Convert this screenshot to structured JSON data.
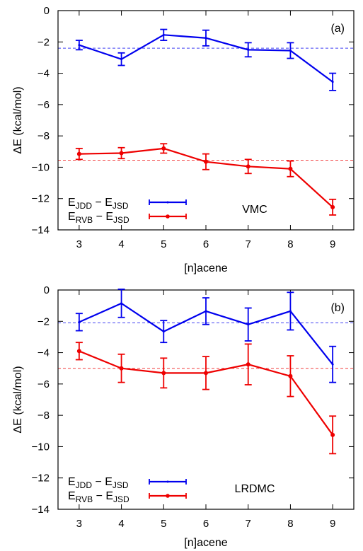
{
  "chart_data": [
    {
      "type": "line",
      "panel_label": "(a)",
      "method_label": "VMC",
      "xlabel": "[n]acene",
      "ylabel": "ΔE (kcal/mol)",
      "x": [
        3,
        4,
        5,
        6,
        7,
        8,
        9
      ],
      "xlim": [
        2.5,
        9.5
      ],
      "ylim": [
        -14,
        0
      ],
      "yticks": [
        0,
        -2,
        -4,
        -6,
        -8,
        -10,
        -12,
        -14
      ],
      "xticks": [
        3,
        4,
        5,
        6,
        7,
        8,
        9
      ],
      "grid": false,
      "legend_position": "bottom-left",
      "series": [
        {
          "legend_main": "E",
          "legend_sub1": "JDD",
          "legend_mid": " − E",
          "legend_sub2": "JSD",
          "color": "#0000ee",
          "values": [
            -2.2,
            -3.1,
            -1.55,
            -1.75,
            -2.5,
            -2.55,
            -4.55
          ],
          "errors": [
            0.3,
            0.4,
            0.35,
            0.5,
            0.45,
            0.5,
            0.55
          ],
          "reference": -2.4
        },
        {
          "legend_main": "E",
          "legend_sub1": "RVB",
          "legend_mid": " − E",
          "legend_sub2": "JSD",
          "color": "#ee0000",
          "values": [
            -9.15,
            -9.1,
            -8.8,
            -9.65,
            -9.95,
            -10.1,
            -12.55
          ],
          "errors": [
            0.35,
            0.35,
            0.3,
            0.5,
            0.45,
            0.5,
            0.5
          ],
          "reference": -9.55
        }
      ]
    },
    {
      "type": "line",
      "panel_label": "(b)",
      "method_label": "LRDMC",
      "xlabel": "[n]acene",
      "ylabel": "ΔE (kcal/mol)",
      "x": [
        3,
        4,
        5,
        6,
        7,
        8,
        9
      ],
      "xlim": [
        2.5,
        9.5
      ],
      "ylim": [
        -14,
        0
      ],
      "yticks": [
        0,
        -2,
        -4,
        -6,
        -8,
        -10,
        -12,
        -14
      ],
      "xticks": [
        3,
        4,
        5,
        6,
        7,
        8,
        9
      ],
      "grid": false,
      "legend_position": "bottom-left",
      "series": [
        {
          "legend_main": "E",
          "legend_sub1": "JDD",
          "legend_mid": " − E",
          "legend_sub2": "JSD",
          "color": "#0000ee",
          "values": [
            -2.05,
            -0.85,
            -2.65,
            -1.35,
            -2.2,
            -1.35,
            -4.75
          ],
          "errors": [
            0.55,
            0.9,
            0.7,
            0.85,
            1.05,
            1.2,
            1.15
          ],
          "reference": -2.1
        },
        {
          "legend_main": "E",
          "legend_sub1": "RVB",
          "legend_mid": " − E",
          "legend_sub2": "JSD",
          "color": "#ee0000",
          "values": [
            -3.9,
            -5.0,
            -5.3,
            -5.3,
            -4.75,
            -5.5,
            -9.25
          ],
          "errors": [
            0.55,
            0.9,
            0.95,
            1.05,
            1.3,
            1.3,
            1.2
          ],
          "reference": -5.0
        }
      ]
    }
  ]
}
